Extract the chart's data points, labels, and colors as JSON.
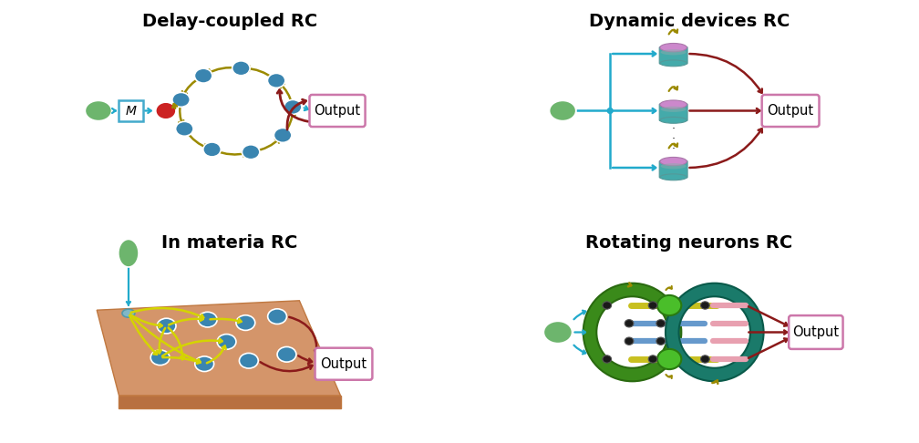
{
  "titles": {
    "tl": "Delay-coupled RC",
    "tr": "Dynamic devices RC",
    "bl": "In materia RC",
    "br": "Rotating neurons RC"
  },
  "colors": {
    "green_node": "#6db56d",
    "teal_node": "#3a85b0",
    "red_node": "#cc2222",
    "arrow_dark_red": "#8b1a1a",
    "arrow_olive": "#9b8a00",
    "arrow_yellow": "#d4d400",
    "arrow_cyan": "#22aacc",
    "output_box_border": "#cc77aa",
    "mask_box_border": "#44aacc",
    "cylinder_purple": "#cc88cc",
    "cylinder_teal": "#44aaaa",
    "platform_color": "#d4956a",
    "platform_shadow": "#b87040",
    "platform_edge": "#c07840",
    "dark_green_ring": "#3a8a1a",
    "teal_ring": "#1a7a6a",
    "mid_green": "#4abe2a",
    "rod_yellow": "#c8c020",
    "rod_blue": "#6699cc",
    "pink_rod": "#e8a0b0",
    "black_node": "#222222"
  },
  "bg_color": "#ffffff",
  "font_title": 14,
  "font_label": 11
}
